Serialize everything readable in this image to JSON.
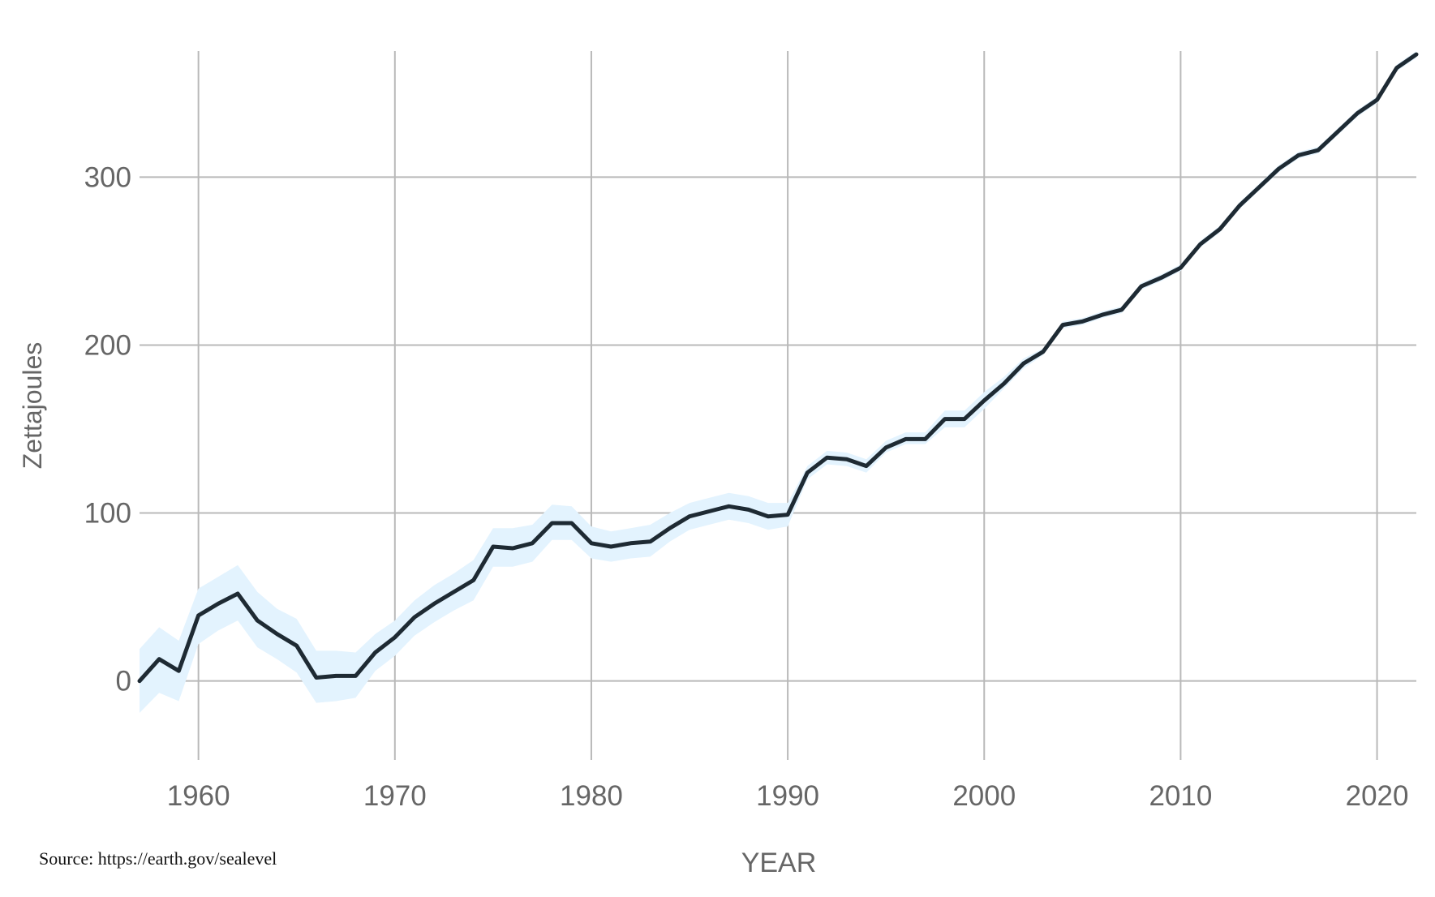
{
  "source_note": "Source: https://earth.gov/sealevel",
  "colors": {
    "line": "#1e2a33",
    "band": "#e3f3fe",
    "grid": "#b9b9b9",
    "tick_text": "#666666",
    "label_text": "#666666"
  },
  "chart_data": {
    "type": "line",
    "title": "",
    "xlabel": "YEAR",
    "ylabel": "Zettajoules",
    "xlim": [
      1957,
      2022
    ],
    "ylim": [
      -47,
      375
    ],
    "x_ticks": [
      1960,
      1970,
      1980,
      1990,
      2000,
      2010,
      2020
    ],
    "y_ticks": [
      0,
      100,
      200,
      300
    ],
    "grid": true,
    "legend": "none",
    "series": [
      {
        "x": [
          1957,
          1958,
          1959,
          1960,
          1961,
          1962,
          1963,
          1964,
          1965,
          1966,
          1967,
          1968,
          1969,
          1970,
          1971,
          1972,
          1973,
          1974,
          1975,
          1976,
          1977,
          1978,
          1979,
          1980,
          1981,
          1982,
          1983,
          1984,
          1985,
          1986,
          1987,
          1988,
          1989,
          1990,
          1991,
          1992,
          1993,
          1994,
          1995,
          1996,
          1997,
          1998,
          1999,
          2000,
          2001,
          2002,
          2003,
          2004,
          2005,
          2006,
          2007,
          2008,
          2009,
          2010,
          2011,
          2012,
          2013,
          2014,
          2015,
          2016,
          2017,
          2018,
          2019,
          2020,
          2021,
          2022
        ],
        "values": [
          0,
          13,
          6,
          39,
          46,
          52,
          36,
          28,
          21,
          2,
          3,
          3,
          17,
          26,
          38,
          46,
          53,
          60,
          80,
          79,
          82,
          94,
          94,
          82,
          80,
          82,
          83,
          91,
          98,
          101,
          104,
          102,
          98,
          99,
          124,
          133,
          132,
          128,
          139,
          144,
          144,
          156,
          156,
          167,
          177,
          189,
          196,
          212,
          214,
          218,
          221,
          235,
          240,
          246,
          260,
          269,
          283,
          294,
          305,
          313,
          316,
          327,
          338,
          346,
          365,
          373
        ],
        "lower": [
          -19,
          -7,
          -12,
          22,
          30,
          36,
          20,
          13,
          5,
          -13,
          -12,
          -10,
          6,
          15,
          27,
          35,
          42,
          48,
          68,
          68,
          71,
          84,
          84,
          73,
          71,
          73,
          74,
          83,
          90,
          93,
          96,
          94,
          90,
          92,
          120,
          129,
          128,
          124,
          136,
          141,
          141,
          151,
          151,
          162,
          174,
          186,
          194,
          210,
          212,
          216,
          219,
          233,
          238,
          244,
          258,
          267,
          281,
          292,
          303,
          311,
          314,
          325,
          336,
          344,
          363,
          371
        ],
        "upper": [
          19,
          32,
          24,
          55,
          62,
          69,
          53,
          43,
          37,
          18,
          18,
          17,
          28,
          36,
          48,
          57,
          64,
          72,
          91,
          91,
          93,
          105,
          104,
          92,
          89,
          91,
          93,
          100,
          106,
          109,
          112,
          110,
          106,
          106,
          128,
          137,
          136,
          132,
          143,
          148,
          148,
          161,
          161,
          172,
          181,
          192,
          198,
          214,
          216,
          220,
          223,
          237,
          242,
          248,
          262,
          271,
          285,
          296,
          307,
          315,
          318,
          329,
          340,
          348,
          367,
          375
        ]
      }
    ]
  }
}
